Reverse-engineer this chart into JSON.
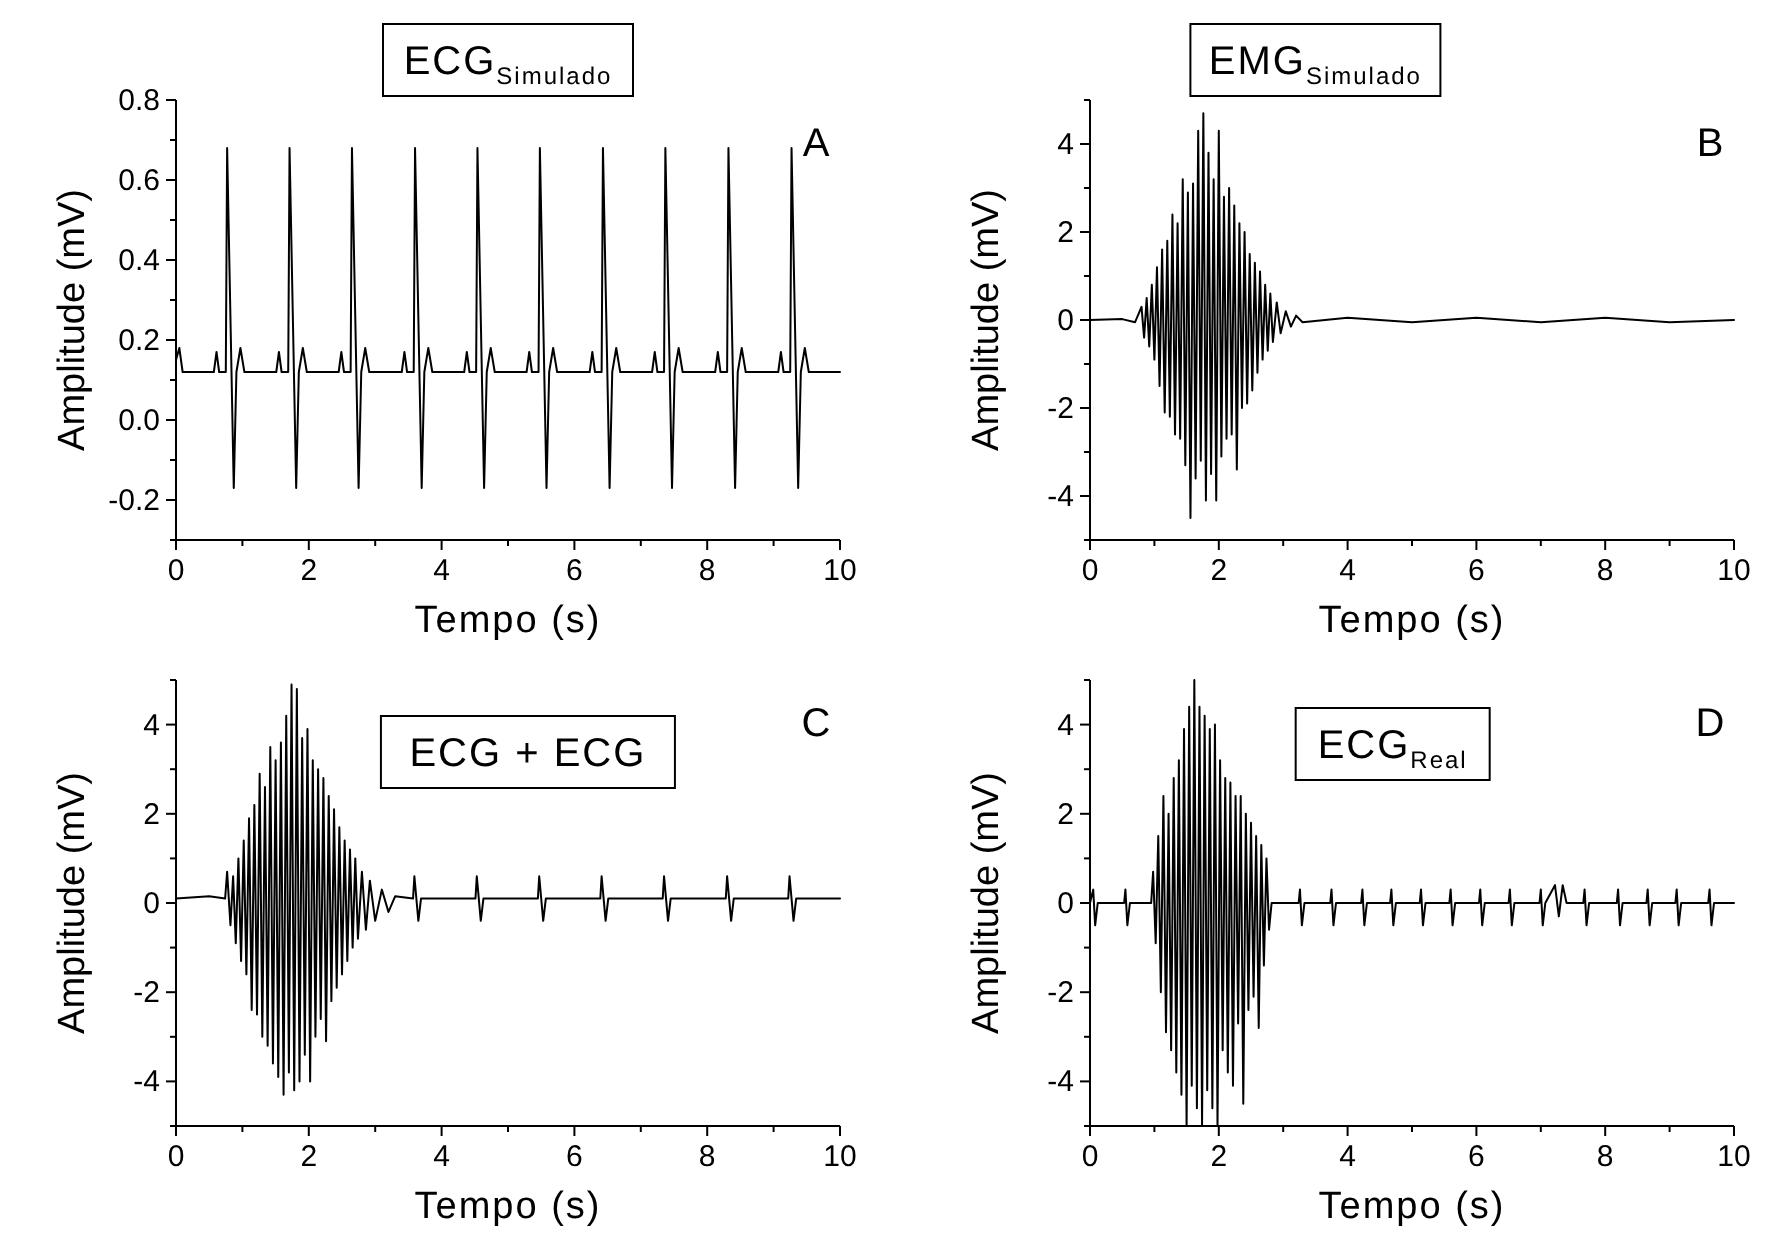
{
  "chart_data": [
    {
      "type": "line",
      "title": "ECG$_{Simulado}$",
      "xlabel": "Tempo (s)",
      "ylabel": "Amplitude (mV)",
      "annotations": [
        "A"
      ],
      "xlim": [
        0,
        10
      ],
      "ylim": [
        -0.3,
        0.8
      ],
      "xticks": [
        0,
        {
          "value": 1,
          "label": null
        },
        2,
        {
          "value": 3,
          "label": null
        },
        4,
        {
          "value": 5,
          "label": null
        },
        6,
        {
          "value": 7,
          "label": null
        },
        8,
        {
          "value": 9,
          "label": null
        },
        10
      ],
      "yticks": [
        {
          "value": -0.3,
          "label": null
        },
        -0.2,
        {
          "value": -0.1,
          "label": null
        },
        {
          "value": 0,
          "label": "0.0"
        },
        {
          "value": 0.1,
          "label": null
        },
        0.2,
        {
          "value": 0.3,
          "label": null
        },
        0.4,
        {
          "value": 0.5,
          "label": null
        },
        0.6,
        {
          "value": 0.7,
          "label": null
        },
        0.8
      ],
      "series": [
        {
          "color": "#000000",
          "x": [
            0,
            0.05,
            0.1,
            0.57,
            0.61,
            0.65,
            0.75,
            0.77,
            0.87,
            0.91,
            0.97,
            1.03,
            1.51,
            1.55,
            1.59,
            1.69,
            1.71,
            1.81,
            1.85,
            1.91,
            1.97,
            2.45,
            2.49,
            2.53,
            2.63,
            2.65,
            2.75,
            2.79,
            2.85,
            2.91,
            3.4,
            3.44,
            3.48,
            3.58,
            3.6,
            3.7,
            3.74,
            3.8,
            3.86,
            4.34,
            4.38,
            4.42,
            4.52,
            4.54,
            4.64,
            4.68,
            4.74,
            4.8,
            5.28,
            5.32,
            5.36,
            5.46,
            5.48,
            5.58,
            5.62,
            5.68,
            5.74,
            6.23,
            6.27,
            6.31,
            6.41,
            6.43,
            6.53,
            6.57,
            6.63,
            6.69,
            7.17,
            7.21,
            7.25,
            7.35,
            7.37,
            7.47,
            7.51,
            7.57,
            7.63,
            8.12,
            8.16,
            8.2,
            8.3,
            8.32,
            8.42,
            8.46,
            8.52,
            8.58,
            9.07,
            9.11,
            9.15,
            9.25,
            9.27,
            9.37,
            9.41,
            9.47,
            9.53,
            10
          ],
          "values": [
            0.15,
            0.18,
            0.12,
            0.12,
            0.17,
            0.12,
            0.12,
            0.68,
            -0.17,
            0.12,
            0.18,
            0.12,
            0.12,
            0.17,
            0.12,
            0.12,
            0.68,
            -0.17,
            0.12,
            0.18,
            0.12,
            0.12,
            0.17,
            0.12,
            0.12,
            0.68,
            -0.17,
            0.12,
            0.18,
            0.12,
            0.12,
            0.17,
            0.12,
            0.12,
            0.68,
            -0.17,
            0.12,
            0.18,
            0.12,
            0.12,
            0.17,
            0.12,
            0.12,
            0.68,
            -0.17,
            0.12,
            0.18,
            0.12,
            0.12,
            0.17,
            0.12,
            0.12,
            0.68,
            -0.17,
            0.12,
            0.18,
            0.12,
            0.12,
            0.17,
            0.12,
            0.12,
            0.68,
            -0.17,
            0.12,
            0.18,
            0.12,
            0.12,
            0.17,
            0.12,
            0.12,
            0.68,
            -0.17,
            0.12,
            0.18,
            0.12,
            0.12,
            0.17,
            0.12,
            0.12,
            0.68,
            -0.17,
            0.12,
            0.18,
            0.12,
            0.12,
            0.17,
            0.12,
            0.12,
            0.68,
            -0.17,
            0.12,
            0.18,
            0.12,
            0.12
          ]
        }
      ]
    },
    {
      "type": "line",
      "title": "EMG$_{Simulado}$",
      "xlabel": "Tempo (s)",
      "ylabel": "Amplitude (mV)",
      "annotations": [
        "B"
      ],
      "xlim": [
        0,
        10
      ],
      "ylim": [
        -5,
        5
      ],
      "xticks": [
        0,
        {
          "value": 1,
          "label": null
        },
        2,
        {
          "value": 3,
          "label": null
        },
        4,
        {
          "value": 5,
          "label": null
        },
        6,
        {
          "value": 7,
          "label": null
        },
        8,
        {
          "value": 9,
          "label": null
        },
        10
      ],
      "yticks": [
        {
          "value": -5,
          "label": null
        },
        -4,
        {
          "value": -3,
          "label": null
        },
        -2,
        {
          "value": -1,
          "label": null
        },
        0,
        {
          "value": 1,
          "label": null
        },
        2,
        {
          "value": 3,
          "label": null
        },
        4,
        {
          "value": 5,
          "label": null
        }
      ],
      "series": [
        {
          "color": "#000000",
          "x": [
            0,
            0.5,
            0.7,
            0.8,
            0.84,
            0.88,
            0.92,
            0.96,
            1.0,
            1.04,
            1.08,
            1.12,
            1.16,
            1.2,
            1.24,
            1.28,
            1.32,
            1.36,
            1.4,
            1.44,
            1.48,
            1.52,
            1.56,
            1.6,
            1.64,
            1.68,
            1.72,
            1.76,
            1.8,
            1.84,
            1.88,
            1.92,
            1.96,
            2.0,
            2.04,
            2.08,
            2.12,
            2.16,
            2.2,
            2.24,
            2.28,
            2.32,
            2.36,
            2.4,
            2.44,
            2.48,
            2.52,
            2.56,
            2.6,
            2.64,
            2.68,
            2.72,
            2.76,
            2.8,
            2.84,
            2.9,
            2.96,
            3.04,
            3.12,
            3.2,
            3.3,
            4,
            5,
            6,
            7,
            8,
            9,
            10
          ],
          "values": [
            0,
            0.02,
            -0.05,
            0.3,
            -0.4,
            0.5,
            -0.6,
            0.8,
            -0.9,
            1.2,
            -1.5,
            1.6,
            -2.1,
            1.8,
            -2.2,
            2.4,
            -2.6,
            2.2,
            -2.7,
            3.2,
            -3.3,
            2.9,
            -4.5,
            3.1,
            -3.6,
            4.3,
            -3.2,
            4.7,
            -4.1,
            3.8,
            -3.5,
            3.2,
            -4.1,
            4.3,
            -3.1,
            2.8,
            -2.7,
            3.0,
            -2.6,
            2.6,
            -3.4,
            2.2,
            -2.0,
            2.0,
            -1.9,
            1.5,
            -1.6,
            1.3,
            -1.2,
            1.1,
            -0.9,
            0.8,
            -0.7,
            0.6,
            -0.5,
            0.4,
            -0.3,
            0.2,
            -0.15,
            0.1,
            -0.05,
            0.05,
            -0.05,
            0.05,
            -0.05,
            0.05,
            -0.05,
            0
          ]
        }
      ]
    },
    {
      "type": "line",
      "title": "ECG + ECG",
      "xlabel": "Tempo (s)",
      "ylabel": "Amplitude (mV)",
      "annotations": [
        "C"
      ],
      "xlim": [
        0,
        10
      ],
      "ylim": [
        -5,
        5
      ],
      "xticks": [
        0,
        {
          "value": 1,
          "label": null
        },
        2,
        {
          "value": 3,
          "label": null
        },
        4,
        {
          "value": 5,
          "label": null
        },
        6,
        {
          "value": 7,
          "label": null
        },
        8,
        {
          "value": 9,
          "label": null
        },
        10
      ],
      "yticks": [
        {
          "value": -5,
          "label": null
        },
        -4,
        {
          "value": -3,
          "label": null
        },
        -2,
        {
          "value": -1,
          "label": null
        },
        0,
        {
          "value": 1,
          "label": null
        },
        2,
        {
          "value": 3,
          "label": null
        },
        4,
        {
          "value": 5,
          "label": null
        }
      ],
      "series": [
        {
          "color": "#000000",
          "x": [
            0,
            0.5,
            0.74,
            0.77,
            0.82,
            0.86,
            0.9,
            0.94,
            0.98,
            1.02,
            1.06,
            1.1,
            1.14,
            1.18,
            1.22,
            1.26,
            1.3,
            1.34,
            1.38,
            1.42,
            1.46,
            1.5,
            1.54,
            1.58,
            1.62,
            1.66,
            1.7,
            1.74,
            1.78,
            1.82,
            1.86,
            1.9,
            1.94,
            1.98,
            2.02,
            2.06,
            2.1,
            2.14,
            2.18,
            2.22,
            2.26,
            2.3,
            2.34,
            2.38,
            2.42,
            2.46,
            2.5,
            2.54,
            2.58,
            2.62,
            2.66,
            2.7,
            2.74,
            2.8,
            2.86,
            2.92,
            3.0,
            3.1,
            3.2,
            3.3,
            3.57,
            3.59,
            3.65,
            3.69,
            4.51,
            4.53,
            4.59,
            4.63,
            5.45,
            5.47,
            5.53,
            5.57,
            6.39,
            6.41,
            6.47,
            6.51,
            7.33,
            7.35,
            7.41,
            7.45,
            8.28,
            8.3,
            8.36,
            8.4,
            9.22,
            9.24,
            9.3,
            9.34,
            10
          ],
          "values": [
            0.1,
            0.15,
            0.1,
            0.7,
            -0.5,
            0.6,
            -0.9,
            1.0,
            -1.3,
            1.4,
            -1.6,
            1.9,
            -2.4,
            2.2,
            -2.5,
            2.9,
            -3.0,
            2.6,
            -3.2,
            3.5,
            -3.6,
            3.2,
            -3.9,
            3.6,
            -4.3,
            4.2,
            -3.8,
            4.9,
            -4.2,
            4.8,
            -4.0,
            3.7,
            -3.4,
            3.9,
            -4.0,
            3.2,
            -3.0,
            3.0,
            -2.6,
            2.8,
            -3.1,
            2.4,
            -2.2,
            2.1,
            -1.9,
            1.7,
            -1.6,
            1.4,
            -1.3,
            1.2,
            -1.0,
            1.0,
            -0.8,
            0.7,
            -0.6,
            0.5,
            -0.4,
            0.3,
            -0.2,
            0.15,
            0.1,
            0.6,
            -0.4,
            0.1,
            0.1,
            0.6,
            -0.4,
            0.1,
            0.1,
            0.6,
            -0.4,
            0.1,
            0.1,
            0.6,
            -0.4,
            0.1,
            0.1,
            0.6,
            -0.4,
            0.1,
            0.1,
            0.6,
            -0.4,
            0.1,
            0.1,
            0.6,
            -0.4,
            0.1,
            0.1
          ]
        }
      ]
    },
    {
      "type": "line",
      "title": "ECG$_{Real}$",
      "xlabel": "Tempo (s)",
      "ylabel": "Amplitude (mV)",
      "annotations": [
        "D"
      ],
      "xlim": [
        0,
        10
      ],
      "ylim": [
        -5,
        5
      ],
      "xticks": [
        0,
        {
          "value": 1,
          "label": null
        },
        2,
        {
          "value": 3,
          "label": null
        },
        4,
        {
          "value": 5,
          "label": null
        },
        6,
        {
          "value": 7,
          "label": null
        },
        8,
        {
          "value": 9,
          "label": null
        },
        10
      ],
      "yticks": [
        {
          "value": -5,
          "label": null
        },
        -4,
        {
          "value": -3,
          "label": null
        },
        -2,
        {
          "value": -1,
          "label": null
        },
        0,
        {
          "value": 1,
          "label": null
        },
        2,
        {
          "value": 3,
          "label": null
        },
        4,
        {
          "value": 5,
          "label": null
        }
      ],
      "series": [
        {
          "color": "#000000",
          "x": [
            0,
            0.05,
            0.08,
            0.12,
            0.53,
            0.55,
            0.58,
            0.62,
            0.95,
            0.98,
            1.02,
            1.06,
            1.1,
            1.14,
            1.18,
            1.22,
            1.26,
            1.3,
            1.34,
            1.38,
            1.42,
            1.46,
            1.5,
            1.54,
            1.58,
            1.62,
            1.66,
            1.7,
            1.74,
            1.78,
            1.82,
            1.86,
            1.9,
            1.94,
            1.98,
            2.02,
            2.06,
            2.1,
            2.14,
            2.18,
            2.22,
            2.26,
            2.3,
            2.34,
            2.38,
            2.42,
            2.46,
            2.5,
            2.54,
            2.58,
            2.62,
            2.66,
            2.7,
            2.74,
            2.78,
            2.82,
            3.24,
            3.26,
            3.29,
            3.33,
            3.73,
            3.75,
            3.78,
            3.82,
            4.21,
            4.23,
            4.26,
            4.3,
            4.66,
            4.68,
            4.71,
            4.75,
            5.12,
            5.14,
            5.17,
            5.21,
            5.58,
            5.6,
            5.63,
            5.67,
            6.04,
            6.06,
            6.09,
            6.13,
            6.5,
            6.52,
            6.55,
            6.59,
            6.98,
            7.0,
            7.03,
            7.07,
            7.22,
            7.28,
            7.34,
            7.4,
            7.66,
            7.68,
            7.71,
            7.75,
            8.18,
            8.2,
            8.23,
            8.27,
            8.64,
            8.66,
            8.69,
            8.73,
            9.09,
            9.11,
            9.14,
            9.18,
            9.6,
            9.62,
            9.65,
            9.69,
            10
          ],
          "values": [
            0,
            0.3,
            -0.5,
            0,
            0,
            0.3,
            -0.5,
            0,
            0,
            0.7,
            -0.9,
            1.5,
            -2.0,
            2.4,
            -2.9,
            2.0,
            -3.3,
            2.8,
            -3.8,
            3.2,
            -4.3,
            3.9,
            -5,
            4.4,
            -4.1,
            5.0,
            -4.6,
            4.4,
            -5,
            4.2,
            -4.2,
            3.9,
            -4.6,
            4.0,
            -5,
            3.2,
            -3.3,
            2.8,
            -3.8,
            2.7,
            -4.1,
            2.4,
            -2.7,
            2.4,
            -4.5,
            2.0,
            -2.4,
            1.8,
            -2.1,
            1.5,
            -2.8,
            1.3,
            -1.4,
            1.0,
            -0.6,
            0,
            0,
            0.3,
            -0.5,
            0,
            0,
            0.3,
            -0.5,
            0,
            0,
            0.3,
            -0.5,
            0,
            0,
            0.3,
            -0.5,
            0,
            0,
            0.3,
            -0.5,
            0,
            0,
            0.3,
            -0.5,
            0,
            0,
            0.3,
            -0.5,
            0,
            0,
            0.3,
            -0.5,
            0,
            0,
            0.3,
            -0.5,
            0,
            0.4,
            -0.3,
            0.4,
            0,
            0,
            0.3,
            -0.5,
            0,
            0,
            0.3,
            -0.5,
            0,
            0,
            0.3,
            -0.5,
            0,
            0,
            0.3,
            -0.5,
            0,
            0,
            0.3,
            -0.5,
            0,
            0
          ]
        }
      ]
    }
  ]
}
